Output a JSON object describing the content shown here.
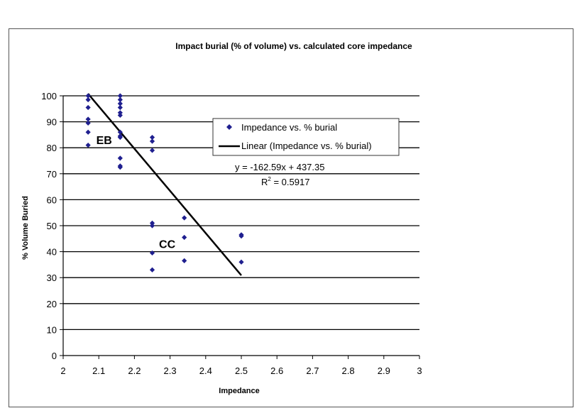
{
  "chart_data": {
    "type": "scatter",
    "title": "Impact burial (% of volume) vs. calculated core impedance",
    "xlabel": "Impedance",
    "ylabel": "% Volume Buried",
    "xlim": [
      2,
      3
    ],
    "ylim": [
      0,
      100
    ],
    "xticks": [
      "2",
      "2.1",
      "2.2",
      "2.3",
      "2.4",
      "2.5",
      "2.6",
      "2.7",
      "2.8",
      "2.9",
      "3"
    ],
    "yticks": [
      "0",
      "10",
      "20",
      "30",
      "40",
      "50",
      "60",
      "70",
      "80",
      "90",
      "100"
    ],
    "grid": "horizontal",
    "legend_position": "center-right",
    "series": [
      {
        "name": "Impedance vs. % burial",
        "color": "#1f1f8f",
        "marker": "diamond",
        "points": [
          [
            2.07,
            100
          ],
          [
            2.07,
            98.5
          ],
          [
            2.07,
            95.5
          ],
          [
            2.07,
            91
          ],
          [
            2.07,
            89.5
          ],
          [
            2.07,
            86
          ],
          [
            2.07,
            81
          ],
          [
            2.16,
            100
          ],
          [
            2.16,
            98.5
          ],
          [
            2.16,
            97
          ],
          [
            2.16,
            95.5
          ],
          [
            2.16,
            93.5
          ],
          [
            2.16,
            92.5
          ],
          [
            2.16,
            86
          ],
          [
            2.16,
            84.5
          ],
          [
            2.16,
            84
          ],
          [
            2.16,
            76
          ],
          [
            2.16,
            73
          ],
          [
            2.16,
            72.5
          ],
          [
            2.25,
            84
          ],
          [
            2.25,
            82.5
          ],
          [
            2.25,
            79
          ],
          [
            2.25,
            51
          ],
          [
            2.25,
            50
          ],
          [
            2.25,
            39.5
          ],
          [
            2.25,
            33
          ],
          [
            2.34,
            53
          ],
          [
            2.34,
            45.5
          ],
          [
            2.34,
            36.5
          ],
          [
            2.5,
            46.5
          ],
          [
            2.5,
            46
          ],
          [
            2.5,
            36
          ]
        ]
      }
    ],
    "trendline": {
      "name": "Linear (Impedance vs. % burial)",
      "color": "#000000",
      "x": [
        2.07,
        2.5
      ],
      "equation": "y = -162.59x + 437.35",
      "r2_text": "R",
      "r2_sup": "2",
      "r2_value": " = 0.5917"
    },
    "annotations": [
      {
        "text": "EB",
        "x": 2.115,
        "y": 83
      },
      {
        "text": "CC",
        "x": 2.292,
        "y": 43
      }
    ]
  }
}
